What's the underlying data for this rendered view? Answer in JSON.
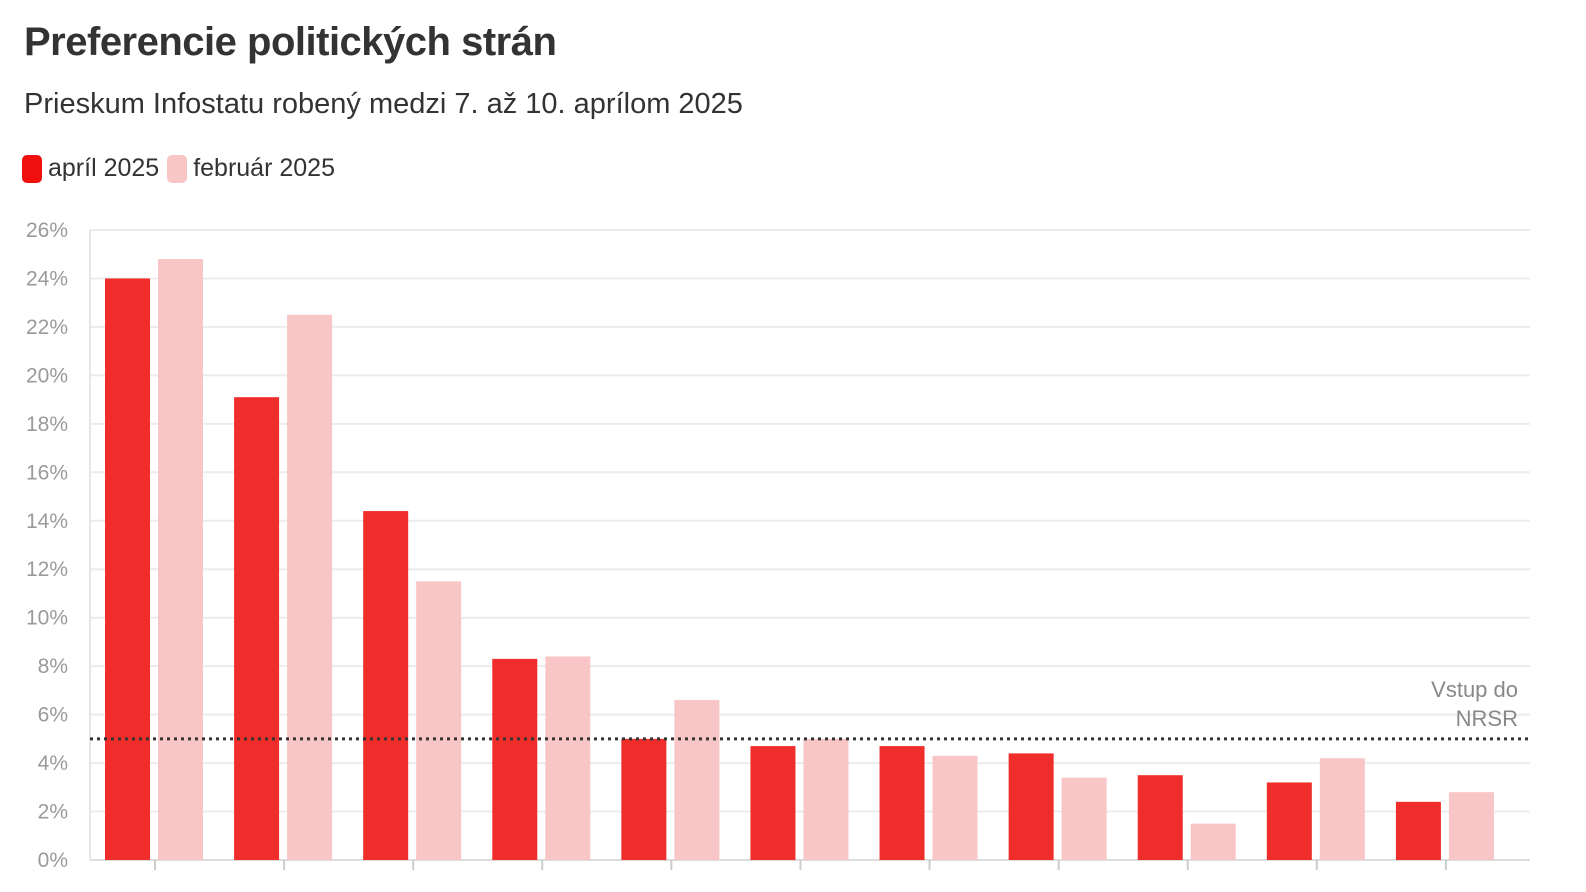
{
  "chart_data": {
    "type": "bar",
    "title": "Preferencie politických strán",
    "subtitle": "Prieskum Infostatu robený medzi 7. až 10. aprílom 2025",
    "categories": [
      "",
      "",
      "",
      "",
      "",
      "",
      "",
      "",
      "",
      "",
      ""
    ],
    "series": [
      {
        "name": "apríl 2025",
        "color": "#ef2d2a",
        "values": [
          24.0,
          19.1,
          14.4,
          8.3,
          5.0,
          4.7,
          4.7,
          4.4,
          3.5,
          3.2,
          2.4
        ]
      },
      {
        "name": "február 2025",
        "color": "#f8c6c6",
        "values": [
          24.8,
          22.5,
          11.5,
          8.4,
          6.6,
          5.0,
          4.3,
          3.4,
          1.5,
          4.2,
          2.8
        ]
      }
    ],
    "ylim": [
      0,
      26
    ],
    "yticks": [
      "0%",
      "2%",
      "4%",
      "6%",
      "8%",
      "10%",
      "12%",
      "14%",
      "16%",
      "18%",
      "20%",
      "22%",
      "24%",
      "26%"
    ],
    "xlabel": "",
    "ylabel": "",
    "grid": true,
    "legend_position": "top-left",
    "threshold": {
      "value": 5,
      "label_line1": "Vstup do",
      "label_line2": "NRSR",
      "style": "dotted",
      "color": "#333333"
    }
  }
}
